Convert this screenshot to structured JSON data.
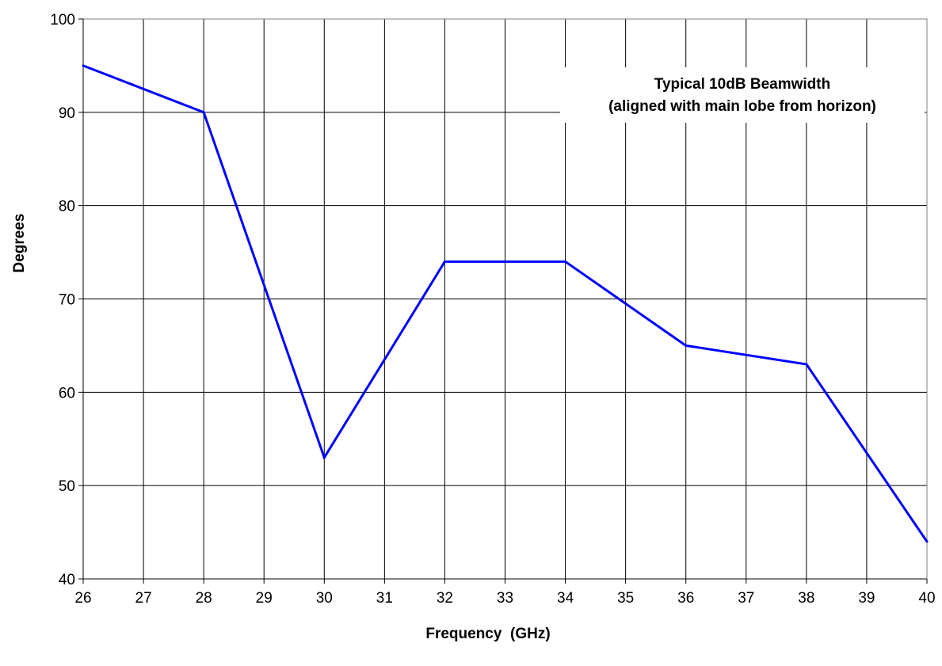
{
  "chart_data": {
    "type": "line",
    "title": "",
    "annotation_lines": [
      "Typical 10dB Beamwidth",
      "(aligned with main lobe from horizon)"
    ],
    "xlabel": "Frequency  (GHz)",
    "ylabel": "Degrees",
    "xlim": [
      26,
      40
    ],
    "ylim": [
      40,
      100
    ],
    "x_ticks": [
      26,
      27,
      28,
      29,
      30,
      31,
      32,
      33,
      34,
      35,
      36,
      37,
      38,
      39,
      40
    ],
    "y_ticks": [
      40,
      50,
      60,
      70,
      80,
      90,
      100
    ],
    "grid": true,
    "legend": false,
    "series": [
      {
        "color": "#0000ff",
        "x": [
          26,
          28,
          30,
          32,
          34,
          36,
          38,
          40
        ],
        "y": [
          95,
          90,
          53,
          74,
          74,
          65,
          63,
          44
        ]
      }
    ]
  }
}
